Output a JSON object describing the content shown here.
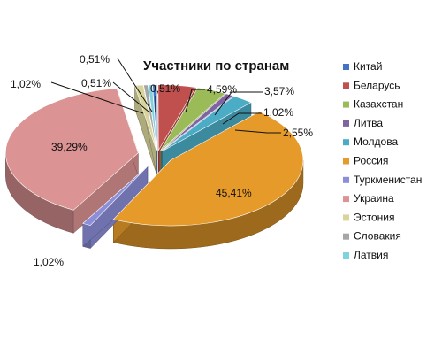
{
  "chart_data": {
    "type": "pie",
    "title": "Участники по странам",
    "legend_position": "right",
    "categories": [
      "Китай",
      "Беларусь",
      "Казахстан",
      "Литва",
      "Молдова",
      "Россия",
      "Туркменистан",
      "Украина",
      "Эстония",
      "Словакия",
      "Латвия"
    ],
    "values": [
      0.51,
      4.59,
      3.57,
      1.02,
      2.55,
      45.41,
      1.02,
      39.29,
      1.02,
      0.51,
      0.51
    ],
    "value_labels": [
      "0,51%",
      "4,59%",
      "3,57%",
      "1,02%",
      "2,55%",
      "45,41%",
      "1,02%",
      "39,29%",
      "1,02%",
      "0,51%",
      "0,51%"
    ],
    "colors": [
      "#4472C4",
      "#C0504D",
      "#9BBB59",
      "#8064A2",
      "#4BACC6",
      "#E59A2A",
      "#8C8FD8",
      "#DC9393",
      "#D8D49A",
      "#A6A6A6",
      "#7FD3E0"
    ]
  }
}
